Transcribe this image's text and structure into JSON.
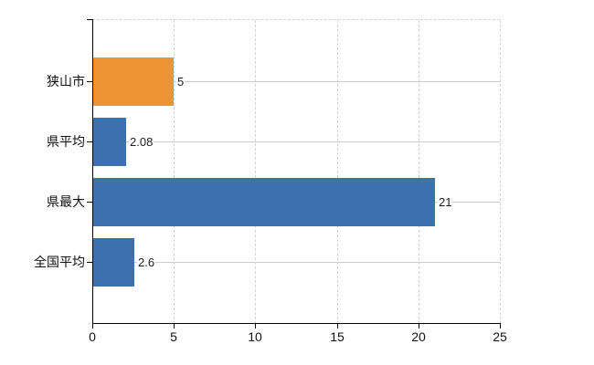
{
  "page": {
    "background": "#ffffff"
  },
  "chart_data": {
    "type": "bar",
    "orientation": "horizontal",
    "categories": [
      "狭山市",
      "県平均",
      "県最大",
      "全国平均"
    ],
    "values": [
      5,
      2.08,
      21,
      2.6
    ],
    "value_labels": [
      "5",
      "2.08",
      "21",
      "2.6"
    ],
    "bar_colors": [
      "#ed9434",
      "#3c70ae",
      "#3c70ae",
      "#3c70ae"
    ],
    "x_ticks": [
      0,
      5,
      10,
      15,
      20,
      25
    ],
    "x_tick_labels": [
      "0",
      "5",
      "10",
      "15",
      "20",
      "25"
    ],
    "xlim": [
      0,
      25
    ],
    "xlabel": "",
    "ylabel": "",
    "grid": true,
    "legend_position": "none"
  },
  "colors": {
    "bar_orange": "#ed9434",
    "bar_blue": "#3c70ae",
    "axis": "#000000",
    "gridline_dashed": "#d4d4d4",
    "gridline_solid": "#cdcdcd",
    "text": "#111111"
  }
}
